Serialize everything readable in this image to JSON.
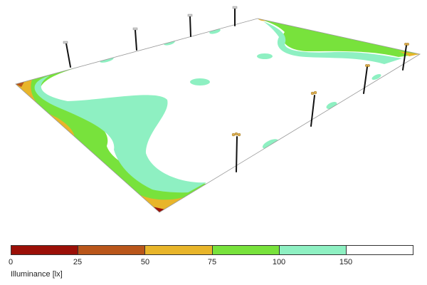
{
  "legend": {
    "title": "Illuminance [lx]",
    "ticks": [
      "0",
      "25",
      "50",
      "75",
      "100",
      "150"
    ],
    "classes": [
      {
        "range": "0-25",
        "color": "#9b1008"
      },
      {
        "range": "25-50",
        "color": "#b9561a"
      },
      {
        "range": "50-75",
        "color": "#e8b52a"
      },
      {
        "range": "75-100",
        "color": "#78e23c"
      },
      {
        "range": "100-150",
        "color": "#8ef0c2"
      },
      {
        "range": "150+",
        "color": "#ffffff"
      }
    ]
  },
  "scene": {
    "field_label": "",
    "poles": [
      {
        "name": "pole-back-1",
        "lamp": "luminaire-icon"
      },
      {
        "name": "pole-back-2",
        "lamp": "luminaire-icon"
      },
      {
        "name": "pole-back-3",
        "lamp": "luminaire-icon"
      },
      {
        "name": "pole-back-4",
        "lamp": "luminaire-icon"
      },
      {
        "name": "pole-front-1",
        "lamp": "luminaire-icon"
      },
      {
        "name": "pole-front-2",
        "lamp": "luminaire-icon"
      },
      {
        "name": "pole-front-3",
        "lamp": "luminaire-icon"
      },
      {
        "name": "pole-front-4",
        "lamp": "luminaire-icon"
      }
    ]
  }
}
